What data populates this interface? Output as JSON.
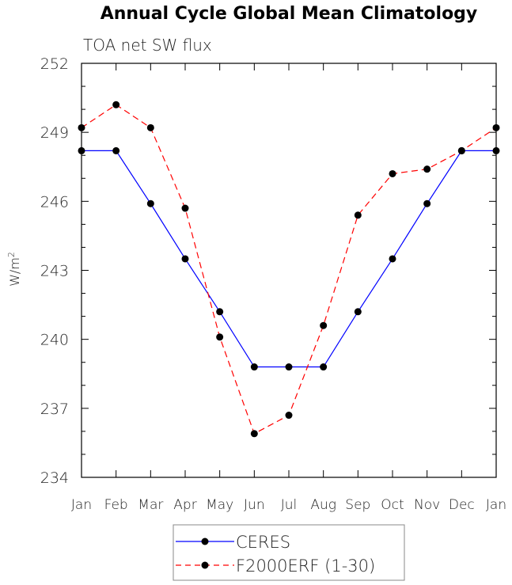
{
  "chart_data": {
    "type": "line",
    "title": "Annual Cycle Global Mean Climatology",
    "subtitle": "TOA net SW flux",
    "xlabel": "",
    "ylabel": "W/m",
    "ylabel_sup": "2",
    "categories": [
      "Jan",
      "Feb",
      "Mar",
      "Apr",
      "May",
      "Jun",
      "Jul",
      "Aug",
      "Sep",
      "Oct",
      "Nov",
      "Dec",
      "Jan"
    ],
    "ylim": [
      234,
      252
    ],
    "yticks": [
      234,
      237,
      240,
      243,
      246,
      249,
      252
    ],
    "series": [
      {
        "name": "CERES",
        "color": "#0000ff",
        "dash": false,
        "values": [
          248.2,
          248.2,
          245.9,
          243.5,
          241.2,
          238.8,
          238.8,
          238.8,
          241.2,
          243.5,
          245.9,
          248.2,
          248.2
        ]
      },
      {
        "name": "F2000ERF (1-30)",
        "color": "#ff0000",
        "dash": true,
        "values": [
          249.2,
          250.2,
          249.2,
          245.7,
          240.1,
          235.9,
          236.7,
          240.6,
          245.4,
          247.2,
          247.4,
          248.2,
          249.2
        ]
      }
    ],
    "legend": "bottom-center"
  }
}
